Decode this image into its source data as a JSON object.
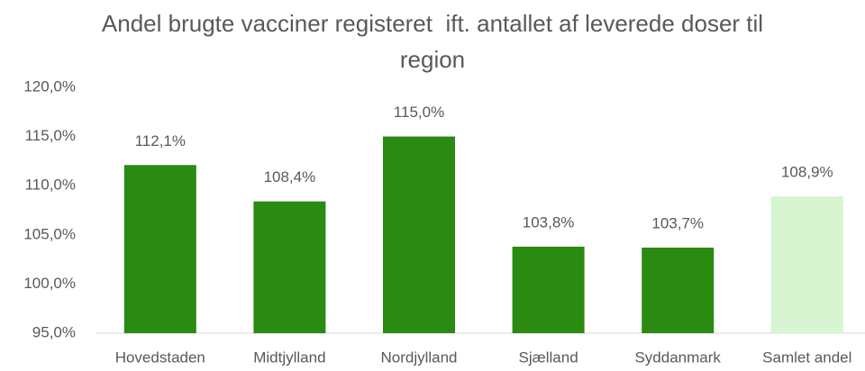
{
  "chart_data": {
    "type": "bar",
    "title": "Andel brugte vacciner registeret  ift. antallet af leverede doser til region",
    "categories": [
      "Hovedstaden",
      "Midtjylland",
      "Nordjylland",
      "Sjælland",
      "Syddanmark",
      "Samlet andel"
    ],
    "values": [
      112.1,
      108.4,
      115.0,
      103.8,
      103.7,
      108.9
    ],
    "value_labels": [
      "112,1%",
      "108,4%",
      "115,0%",
      "103,8%",
      "103,7%",
      "108,9%"
    ],
    "colors": [
      "#2a8a12",
      "#2a8a12",
      "#2a8a12",
      "#2a8a12",
      "#2a8a12",
      "#d6f5d0"
    ],
    "ylim": [
      95,
      120
    ],
    "yticks": [
      {
        "value": 95,
        "label": "95,0%"
      },
      {
        "value": 100,
        "label": "100,0%"
      },
      {
        "value": 105,
        "label": "105,0%"
      },
      {
        "value": 110,
        "label": "110,0%"
      },
      {
        "value": 115,
        "label": "115,0%"
      },
      {
        "value": 120,
        "label": "120,0%"
      }
    ],
    "grid": false
  }
}
